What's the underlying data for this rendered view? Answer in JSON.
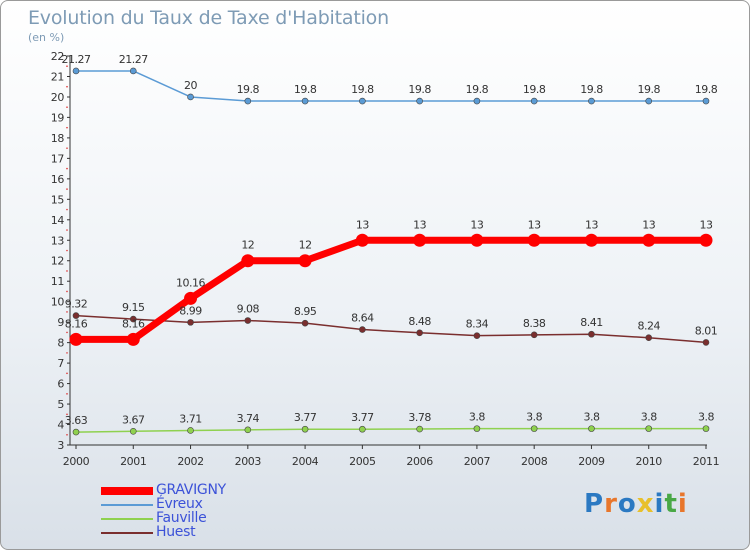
{
  "header": {
    "title": "Evolution du Taux de Taxe d'Habitation",
    "subtitle": "(en %)"
  },
  "logo": {
    "text": "Proxiti",
    "letters": [
      "P",
      "r",
      "o",
      "x",
      "i",
      "t",
      "i"
    ],
    "colors": [
      "#2b79c2",
      "#e8762b",
      "#2b79c2",
      "#e8c02b",
      "#2b79c2",
      "#49a845",
      "#e8762b"
    ]
  },
  "chart_data": {
    "type": "line",
    "title": "Evolution du Taux de Taxe d'Habitation",
    "ylabel": "(en %)",
    "xlabel": "",
    "ylim": [
      3,
      22
    ],
    "yticks": [
      3,
      4,
      5,
      6,
      7,
      8,
      9,
      10,
      11,
      12,
      13,
      14,
      15,
      16,
      17,
      18,
      19,
      20,
      21,
      22
    ],
    "categories": [
      "2000",
      "2001",
      "2002",
      "2003",
      "2004",
      "2005",
      "2006",
      "2007",
      "2008",
      "2009",
      "2010",
      "2011"
    ],
    "series": [
      {
        "name": "GRAVIGNY",
        "color": "#ff0000",
        "values": [
          8.16,
          8.16,
          10.16,
          12,
          12,
          13,
          13,
          13,
          13,
          13,
          13,
          13
        ],
        "labels": [
          "8.16",
          "8.16",
          "10.16",
          "12",
          "12",
          "13",
          "13",
          "13",
          "13",
          "13",
          "13",
          "13"
        ]
      },
      {
        "name": "Évreux",
        "color": "#5b9bd5",
        "values": [
          21.27,
          21.27,
          20,
          19.8,
          19.8,
          19.8,
          19.8,
          19.8,
          19.8,
          19.8,
          19.8,
          19.8
        ],
        "labels": [
          "21.27",
          "21.27",
          "20",
          "19.8",
          "19.8",
          "19.8",
          "19.8",
          "19.8",
          "19.8",
          "19.8",
          "19.8",
          "19.8"
        ]
      },
      {
        "name": "Fauville",
        "color": "#8fd14f",
        "values": [
          3.63,
          3.67,
          3.71,
          3.74,
          3.77,
          3.77,
          3.78,
          3.8,
          3.8,
          3.8,
          3.8,
          3.8
        ],
        "labels": [
          "3.63",
          "3.67",
          "3.71",
          "3.74",
          "3.77",
          "3.77",
          "3.78",
          "3.8",
          "3.8",
          "3.8",
          "3.8",
          "3.8"
        ]
      },
      {
        "name": "Huest",
        "color": "#7a2e2e",
        "values": [
          9.32,
          9.15,
          8.99,
          9.08,
          8.95,
          8.64,
          8.48,
          8.34,
          8.38,
          8.41,
          8.24,
          8.01
        ],
        "labels": [
          "9.32",
          "9.15",
          "8.99",
          "9.08",
          "8.95",
          "8.64",
          "8.48",
          "8.34",
          "8.38",
          "8.41",
          "8.24",
          "8.01"
        ]
      }
    ],
    "legend_position": "bottom-left",
    "grid": false
  }
}
